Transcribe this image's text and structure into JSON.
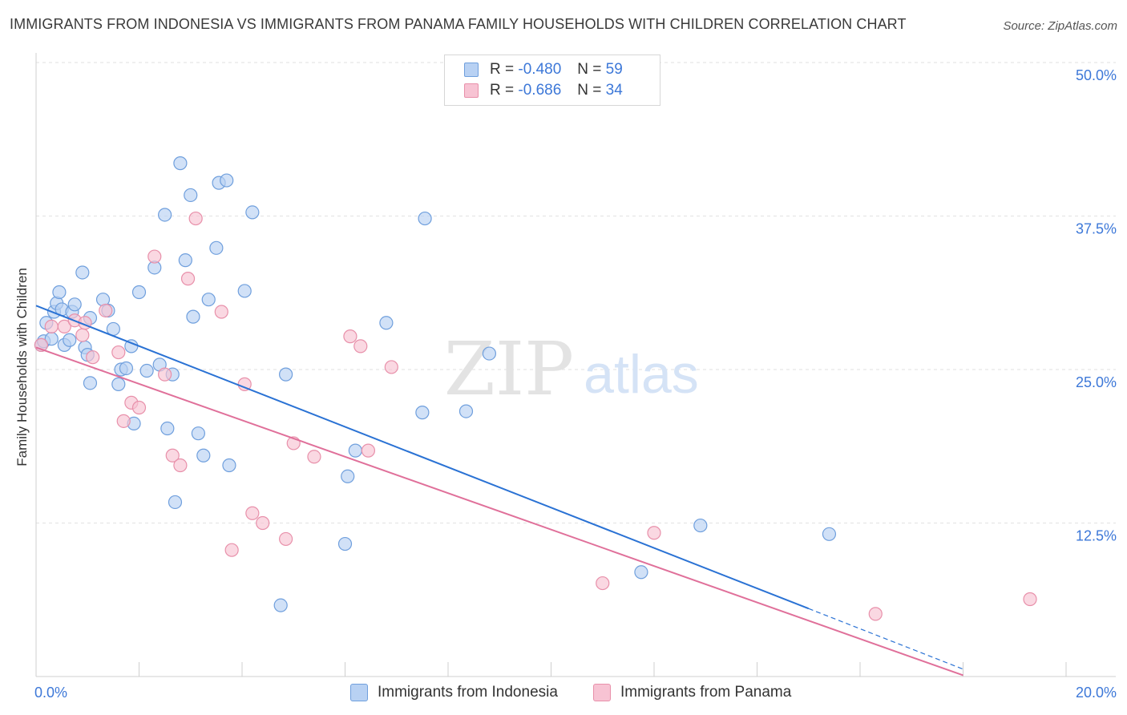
{
  "header": {
    "title": "IMMIGRANTS FROM INDONESIA VS IMMIGRANTS FROM PANAMA FAMILY HOUSEHOLDS WITH CHILDREN CORRELATION CHART",
    "source": "Source: ZipAtlas.com"
  },
  "legend": {
    "indonesia": {
      "r_label": "R =",
      "r_value": "-0.480",
      "n_label": "N =",
      "n_value": "59"
    },
    "panama": {
      "r_label": "R =",
      "r_value": "-0.686",
      "n_label": "N =",
      "n_value": "34"
    }
  },
  "colors": {
    "indonesia_fill": "#b8d1f3",
    "indonesia_stroke": "#6f9fdd",
    "indonesia_line": "#2a72d4",
    "panama_fill": "#f7c3d3",
    "panama_stroke": "#e890aa",
    "panama_line": "#e0709a",
    "tick_label": "#3d78d8",
    "grid": "#e2e2e2"
  },
  "watermark": {
    "zip": "ZIP",
    "atlas": "atlas"
  },
  "chart_data": {
    "type": "scatter",
    "title": "IMMIGRANTS FROM INDONESIA VS IMMIGRANTS FROM PANAMA FAMILY HOUSEHOLDS WITH CHILDREN CORRELATION CHART",
    "xlabel": "",
    "ylabel": "Family Households with Children",
    "xlim": [
      0,
      20
    ],
    "ylim": [
      0,
      50
    ],
    "x_tick_labels": [
      "0.0%",
      "20.0%"
    ],
    "y_ticks": [
      12.5,
      25.0,
      37.5,
      50.0
    ],
    "y_tick_labels": [
      "12.5%",
      "25.0%",
      "37.5%",
      "50.0%"
    ],
    "series": [
      {
        "name": "Immigrants from Indonesia",
        "key": "indonesia",
        "r": -0.48,
        "n": 59,
        "trend": {
          "x0": 0.0,
          "y0": 30.2,
          "x1": 18.0,
          "y1": 0.6,
          "solid_until": 15.0
        },
        "points": [
          [
            0.1,
            27.0
          ],
          [
            0.15,
            27.3
          ],
          [
            0.2,
            28.8
          ],
          [
            0.3,
            27.5
          ],
          [
            0.35,
            29.7
          ],
          [
            0.4,
            30.4
          ],
          [
            0.45,
            31.3
          ],
          [
            0.5,
            29.9
          ],
          [
            0.55,
            27.0
          ],
          [
            0.7,
            29.7
          ],
          [
            0.75,
            30.3
          ],
          [
            0.9,
            32.9
          ],
          [
            0.95,
            26.8
          ],
          [
            1.0,
            26.2
          ],
          [
            1.05,
            23.9
          ],
          [
            1.3,
            30.7
          ],
          [
            1.4,
            29.8
          ],
          [
            1.5,
            28.3
          ],
          [
            1.6,
            23.8
          ],
          [
            1.65,
            25.0
          ],
          [
            1.75,
            25.1
          ],
          [
            1.85,
            26.9
          ],
          [
            1.9,
            20.6
          ],
          [
            2.0,
            31.3
          ],
          [
            2.15,
            24.9
          ],
          [
            2.3,
            33.3
          ],
          [
            2.4,
            25.4
          ],
          [
            2.5,
            37.6
          ],
          [
            2.55,
            20.2
          ],
          [
            2.65,
            24.6
          ],
          [
            2.7,
            14.2
          ],
          [
            2.8,
            41.8
          ],
          [
            2.9,
            33.9
          ],
          [
            3.0,
            39.2
          ],
          [
            3.05,
            29.3
          ],
          [
            3.15,
            19.8
          ],
          [
            3.25,
            18.0
          ],
          [
            3.35,
            30.7
          ],
          [
            3.5,
            34.9
          ],
          [
            3.55,
            40.2
          ],
          [
            3.7,
            40.4
          ],
          [
            3.75,
            17.2
          ],
          [
            4.05,
            31.4
          ],
          [
            4.2,
            37.8
          ],
          [
            4.75,
            5.8
          ],
          [
            4.85,
            24.6
          ],
          [
            6.0,
            10.8
          ],
          [
            6.05,
            16.3
          ],
          [
            6.2,
            18.4
          ],
          [
            6.8,
            28.8
          ],
          [
            7.5,
            21.5
          ],
          [
            7.55,
            37.3
          ],
          [
            8.35,
            21.6
          ],
          [
            8.8,
            26.3
          ],
          [
            11.75,
            8.5
          ],
          [
            12.9,
            12.3
          ],
          [
            15.4,
            11.6
          ],
          [
            0.65,
            27.4
          ],
          [
            1.05,
            29.2
          ]
        ]
      },
      {
        "name": "Immigrants from Panama",
        "key": "panama",
        "r": -0.686,
        "n": 34,
        "trend": {
          "x0": 0.0,
          "y0": 26.8,
          "x1": 18.0,
          "y1": 0.1
        },
        "points": [
          [
            0.1,
            27.0
          ],
          [
            0.3,
            28.5
          ],
          [
            0.55,
            28.5
          ],
          [
            0.75,
            29.0
          ],
          [
            0.9,
            27.8
          ],
          [
            0.95,
            28.8
          ],
          [
            1.1,
            26.0
          ],
          [
            1.35,
            29.8
          ],
          [
            1.6,
            26.4
          ],
          [
            1.7,
            20.8
          ],
          [
            1.85,
            22.3
          ],
          [
            2.0,
            21.9
          ],
          [
            2.3,
            34.2
          ],
          [
            2.5,
            24.6
          ],
          [
            2.65,
            18.0
          ],
          [
            2.8,
            17.2
          ],
          [
            2.95,
            32.4
          ],
          [
            3.1,
            37.3
          ],
          [
            3.6,
            29.7
          ],
          [
            3.8,
            10.3
          ],
          [
            4.05,
            23.8
          ],
          [
            4.2,
            13.3
          ],
          [
            4.4,
            12.5
          ],
          [
            4.85,
            11.2
          ],
          [
            5.0,
            19.0
          ],
          [
            5.4,
            17.9
          ],
          [
            6.1,
            27.7
          ],
          [
            6.3,
            26.9
          ],
          [
            6.45,
            18.4
          ],
          [
            6.9,
            25.2
          ],
          [
            11.0,
            7.6
          ],
          [
            12.0,
            11.7
          ],
          [
            16.3,
            5.1
          ],
          [
            19.3,
            6.3
          ]
        ]
      }
    ]
  }
}
